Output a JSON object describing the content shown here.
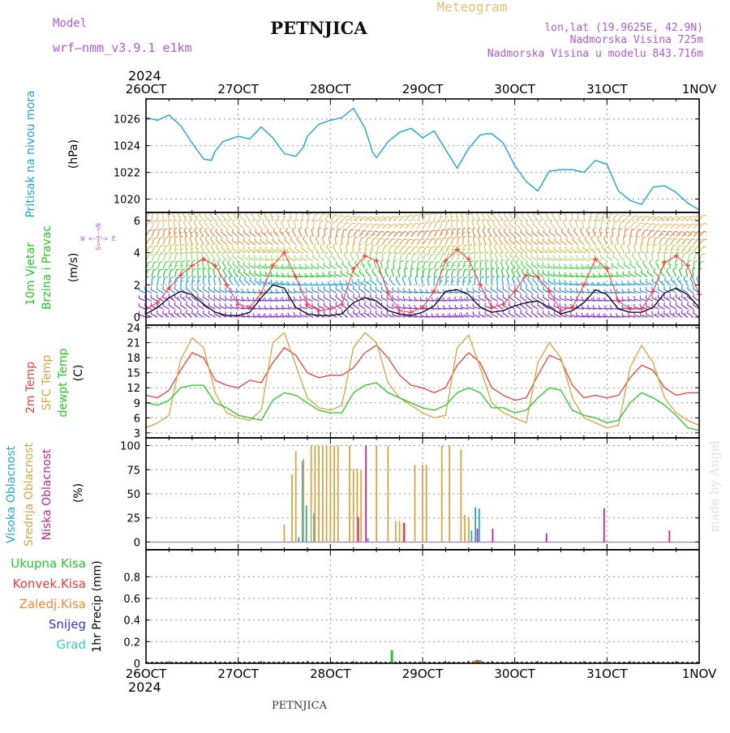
{
  "header": {
    "model_label": "Model",
    "model_name": "wrf—nmm_v3.9.1  e1km",
    "station": "PETNJICA",
    "product": "Meteogram",
    "lonlat": "lon,lat (19.9625E, 42.9N)",
    "altitude": "Nadmorska Visina 725m",
    "model_altitude": "Nadmorska Visina u modelu 843.716m",
    "footer_station": "PETNJICA",
    "credit": "made by Angel"
  },
  "time_axis": {
    "year_top": "2024",
    "year_bottom": "2024",
    "day_labels": [
      "26OCT",
      "27OCT",
      "28OCT",
      "29OCT",
      "30OCT",
      "31OCT",
      "1NOV"
    ],
    "start": "2024-10-26T00:00",
    "end": "2024-11-01T00:00"
  },
  "panel_labels": {
    "pressure": {
      "name": "Pritisak na nivou mora",
      "unit": "(hPa)"
    },
    "wind": {
      "name1": "10m Vjetar",
      "name2": "Brzina i Pravac",
      "unit": "(m/s)",
      "compass_ns": "S<—|—>N",
      "compass_we": "W <—|—> E"
    },
    "temp": {
      "name1": "2m Temp",
      "name2": "SFC Temp",
      "name3": "dewpt Temp",
      "unit": "(C)"
    },
    "cloud": {
      "name1": "Visoka Oblacnost",
      "name2": "Srednja Oblacnost",
      "name3": "Niska Oblacnost",
      "unit": "(%)"
    },
    "precip": {
      "unit": "1hr Precip (mm)",
      "legend": [
        "Ukupna Kisa",
        "Konvek.Kisa",
        "Zaledj.Kisa",
        "Snijeg",
        "Grad"
      ]
    }
  },
  "colors": {
    "pressure": "#1aa3e6",
    "wind_speed": "#000000",
    "wind_gust": "#ff3333",
    "temp_2m": "#e8423c",
    "temp_sfc": "#d9a441",
    "dewpoint": "#22cc22",
    "cloud_high": "#22aacc",
    "cloud_mid": "#d9a441",
    "cloud_low": "#cc2288",
    "rain_total": "#22cc22",
    "rain_conv": "#ff3333",
    "rain_freezing": "#ff8833",
    "snow": "#3333dd",
    "hail": "#33cccc",
    "title_purple": "#b05ad8",
    "meteogram_title": "#e8c070"
  },
  "chart_data": [
    {
      "panel": "pressure",
      "type": "line",
      "ylabel": "(hPa)",
      "ylim": [
        1019,
        1027.5
      ],
      "yticks": [
        1020,
        1022,
        1024,
        1026
      ],
      "x_hours": [
        0,
        3,
        6,
        9,
        12,
        15,
        17,
        18,
        20,
        24,
        27,
        30,
        33,
        36,
        39,
        41,
        42,
        45,
        48,
        51,
        54,
        57,
        59,
        60,
        63,
        66,
        69,
        72,
        75,
        78,
        81,
        84,
        87,
        89,
        90,
        93,
        96,
        99,
        102,
        105,
        108,
        111,
        114,
        117,
        120,
        123,
        126,
        129,
        132,
        135,
        138,
        141,
        144
      ],
      "values": [
        1026.1,
        1025.9,
        1026.3,
        1025.5,
        1024.2,
        1023.0,
        1022.9,
        1023.6,
        1024.3,
        1024.7,
        1024.5,
        1025.4,
        1024.6,
        1023.4,
        1023.2,
        1023.9,
        1024.7,
        1025.6,
        1025.9,
        1026.1,
        1026.8,
        1025.3,
        1023.5,
        1023.1,
        1024.3,
        1025.0,
        1025.3,
        1024.6,
        1025.1,
        1023.7,
        1022.3,
        1023.8,
        1024.8,
        1024.9,
        1024.9,
        1024.2,
        1022.5,
        1021.3,
        1020.6,
        1022.1,
        1022.2,
        1022.2,
        1022.0,
        1022.9,
        1022.6,
        1020.6,
        1019.9,
        1019.6,
        1020.9,
        1021.0,
        1020.5,
        1019.7,
        1019.2
      ]
    },
    {
      "panel": "wind",
      "type": "line",
      "ylabel": "(m/s)",
      "ylim": [
        -0.5,
        6.5
      ],
      "yticks": [
        0,
        2,
        4,
        6
      ],
      "barb_levels": [
        0,
        0.5,
        1,
        1.5,
        2,
        2.5,
        3,
        3.5,
        4,
        4.5,
        5,
        5.5,
        6
      ],
      "speed_x_hours": [
        0,
        3,
        6,
        9,
        12,
        15,
        18,
        21,
        24,
        27,
        30,
        33,
        36,
        39,
        42,
        45,
        48,
        51,
        54,
        57,
        60,
        63,
        66,
        69,
        72,
        75,
        78,
        81,
        84,
        87,
        90,
        93,
        96,
        99,
        102,
        105,
        108,
        111,
        114,
        117,
        120,
        123,
        126,
        129,
        132,
        135,
        138,
        141,
        144
      ],
      "speed_values": [
        0.2,
        0.6,
        1.2,
        1.6,
        1.4,
        0.8,
        0.3,
        0.1,
        0.1,
        0.3,
        1.2,
        2.0,
        1.8,
        0.6,
        0.2,
        0.1,
        0.1,
        0.2,
        0.9,
        1.2,
        1.0,
        0.4,
        0.2,
        0.1,
        0.3,
        0.7,
        1.6,
        1.7,
        1.4,
        0.6,
        0.3,
        0.4,
        0.7,
        0.9,
        1.0,
        0.6,
        0.2,
        0.4,
        0.9,
        1.7,
        1.4,
        0.5,
        0.3,
        0.3,
        0.6,
        1.5,
        1.8,
        1.4,
        0.6
      ],
      "gust_x_hours": [
        0,
        3,
        6,
        9,
        12,
        15,
        18,
        21,
        24,
        27,
        30,
        33,
        36,
        39,
        42,
        45,
        48,
        51,
        54,
        57,
        60,
        63,
        66,
        69,
        72,
        75,
        78,
        81,
        84,
        87,
        90,
        93,
        96,
        99,
        102,
        105,
        108,
        111,
        114,
        117,
        120,
        123,
        126,
        129,
        132,
        135,
        138,
        141,
        144
      ],
      "gust_values": [
        0.5,
        0.9,
        1.8,
        2.6,
        3.2,
        3.6,
        3.2,
        2.0,
        0.8,
        0.6,
        1.5,
        3.2,
        4.0,
        2.5,
        0.8,
        0.4,
        0.5,
        0.8,
        3.0,
        3.8,
        3.5,
        1.5,
        0.4,
        0.3,
        0.6,
        1.6,
        3.5,
        4.2,
        3.6,
        2.0,
        0.6,
        0.8,
        1.6,
        2.6,
        2.5,
        1.6,
        0.4,
        0.6,
        2.0,
        3.6,
        3.0,
        1.0,
        0.5,
        0.5,
        1.6,
        3.4,
        3.8,
        3.2,
        1.4
      ]
    },
    {
      "panel": "temperature",
      "type": "line",
      "ylabel": "(C)",
      "ylim": [
        2,
        24.5
      ],
      "yticks": [
        3,
        6,
        9,
        12,
        15,
        18,
        21,
        24
      ],
      "x_hours": [
        0,
        3,
        6,
        9,
        12,
        15,
        18,
        21,
        24,
        27,
        30,
        33,
        36,
        39,
        42,
        45,
        48,
        51,
        54,
        57,
        60,
        63,
        66,
        69,
        72,
        75,
        78,
        81,
        84,
        87,
        90,
        93,
        96,
        99,
        102,
        105,
        108,
        111,
        114,
        117,
        120,
        123,
        126,
        129,
        132,
        135,
        138,
        141,
        144
      ],
      "series": [
        {
          "name": "2m Temp",
          "values": [
            10.5,
            10.0,
            11.5,
            15.5,
            19.0,
            18.0,
            13.5,
            12.5,
            12.0,
            13.5,
            13.0,
            17.0,
            20.0,
            18.5,
            15.0,
            14.0,
            14.5,
            14.5,
            16.0,
            19.0,
            20.5,
            18.0,
            14.5,
            12.5,
            12.0,
            11.0,
            12.0,
            16.5,
            19.0,
            17.0,
            12.0,
            10.5,
            9.5,
            10.0,
            14.5,
            18.5,
            17.5,
            12.5,
            10.0,
            10.5,
            10.0,
            10.5,
            14.0,
            16.5,
            15.5,
            12.0,
            10.5,
            11.0,
            11.0
          ]
        },
        {
          "name": "SFC Temp",
          "values": [
            4.0,
            5.0,
            6.5,
            17.5,
            22.0,
            20.0,
            11.0,
            7.0,
            6.0,
            5.5,
            7.5,
            21.0,
            23.0,
            16.5,
            10.0,
            8.0,
            7.5,
            8.5,
            20.0,
            23.0,
            21.0,
            13.0,
            10.0,
            8.5,
            7.0,
            6.0,
            6.5,
            20.0,
            22.5,
            16.0,
            9.0,
            7.0,
            6.0,
            5.0,
            17.0,
            21.0,
            18.0,
            10.0,
            6.0,
            5.0,
            4.0,
            4.5,
            16.0,
            20.5,
            17.0,
            10.0,
            7.0,
            5.5,
            4.5
          ]
        },
        {
          "name": "dewpt Temp",
          "values": [
            9.0,
            8.5,
            9.5,
            12.0,
            12.5,
            12.5,
            9.0,
            8.0,
            6.5,
            6.0,
            5.5,
            9.5,
            11.0,
            10.5,
            9.0,
            7.5,
            7.0,
            7.0,
            11.0,
            12.5,
            13.0,
            11.0,
            10.0,
            9.0,
            8.0,
            7.5,
            8.5,
            11.0,
            12.0,
            11.0,
            8.0,
            8.0,
            7.0,
            7.5,
            10.0,
            12.0,
            11.5,
            7.5,
            6.5,
            6.0,
            5.0,
            5.5,
            9.0,
            11.0,
            10.0,
            8.5,
            6.5,
            4.0,
            3.5
          ]
        }
      ]
    },
    {
      "panel": "cloud",
      "type": "bar",
      "ylabel": "(%)",
      "ylim": [
        -8,
        108
      ],
      "yticks": [
        0,
        25,
        50,
        75,
        100
      ],
      "series": [
        {
          "name": "Visoka Oblacnost",
          "x_hours": [
            40,
            41,
            42,
            44,
            58,
            85,
            86,
            87
          ],
          "values": [
            5,
            84,
            38,
            30,
            4,
            12,
            36,
            35
          ]
        },
        {
          "name": "Srednja Oblacnost",
          "x_hours": [
            36,
            38,
            39,
            41,
            43,
            44,
            45,
            46,
            47,
            48,
            49,
            50,
            53,
            54,
            55,
            56,
            60,
            63,
            65,
            66,
            67,
            70,
            72,
            73,
            77,
            79,
            82,
            83,
            84
          ],
          "values": [
            18,
            70,
            94,
            86,
            100,
            100,
            100,
            100,
            100,
            100,
            100,
            100,
            100,
            76,
            76,
            74,
            100,
            100,
            22,
            22,
            20,
            80,
            80,
            80,
            100,
            100,
            96,
            28,
            26
          ]
        },
        {
          "name": "Niska Oblacnost",
          "x_hours": [
            55,
            57,
            67,
            86,
            90,
            104,
            119,
            136
          ],
          "values": [
            26,
            100,
            20,
            14,
            14,
            9,
            35,
            12
          ]
        }
      ]
    },
    {
      "panel": "precip",
      "type": "bar",
      "ylabel": "1hr Precip (mm)",
      "ylim": [
        0,
        1.05
      ],
      "yticks": [
        0,
        0.2,
        0.4,
        0.6,
        0.8
      ],
      "series": [
        {
          "name": "Ukupna Kisa",
          "x_hours": [
            64,
            86,
            87
          ],
          "values": [
            0.12,
            0.03,
            0.03
          ]
        },
        {
          "name": "Konvek.Kisa",
          "x_hours": [
            85,
            86
          ],
          "values": [
            0.02,
            0.03
          ]
        },
        {
          "name": "Zaledj.Kisa",
          "x_hours": [],
          "values": []
        },
        {
          "name": "Snijeg",
          "x_hours": [],
          "values": []
        },
        {
          "name": "Grad",
          "x_hours": [],
          "values": []
        }
      ]
    }
  ]
}
